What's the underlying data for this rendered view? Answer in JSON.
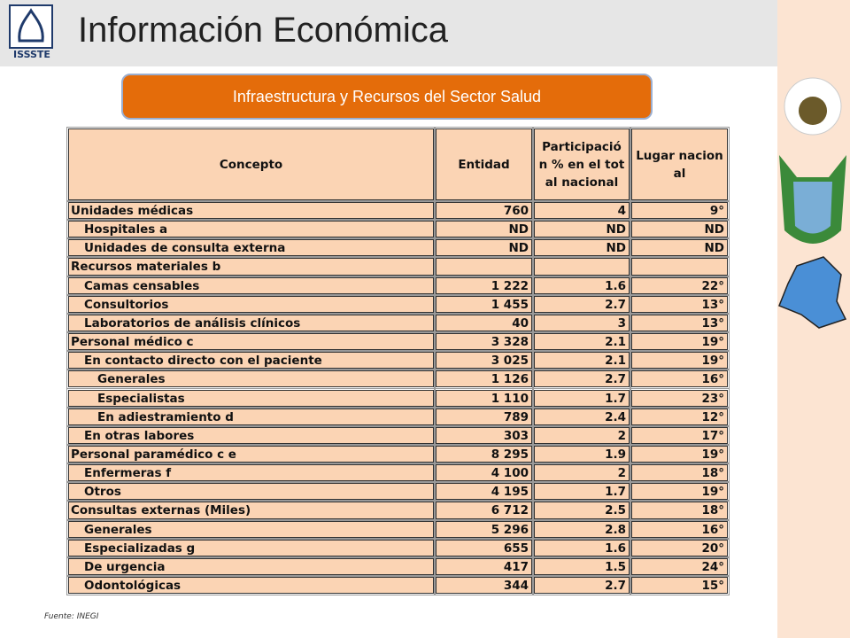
{
  "header": {
    "logo": "ISSSTE",
    "title": "Información Económica"
  },
  "banner": "Infraestructura y Recursos del Sector Salud",
  "table": {
    "columns": [
      "Concepto",
      "Entidad",
      "Participación % en el total nacional",
      "Lugar nacional"
    ],
    "rows": [
      {
        "cells": [
          "Unidades médicas",
          760,
          4,
          "9°"
        ],
        "rows": [
          {
            "cells": [
              "Hospitales a",
              "ND",
              "ND",
              "ND"
            ]
          },
          {
            "cells": [
              "Unidades de consulta externa",
              "ND",
              "ND",
              "ND"
            ]
          }
        ]
      },
      {
        "cells": [
          "Recursos materiales b",
          null,
          null,
          null
        ],
        "rows": [
          {
            "cells": [
              "Camas censables",
              "1 222",
              1.6,
              "22°"
            ]
          },
          {
            "cells": [
              "Consultorios",
              "1 455",
              2.7,
              "13°"
            ]
          },
          {
            "cells": [
              "Laboratorios de análisis clínicos",
              40,
              3,
              "13°"
            ]
          }
        ]
      },
      {
        "cells": [
          "Personal médico c",
          "3 328",
          2.1,
          "19°"
        ],
        "rows": [
          {
            "cells": [
              "En contacto directo con el paciente",
              "3 025",
              2.1,
              "19°"
            ],
            "rows": [
              {
                "cells": [
                  "Generales",
                  "1 126",
                  2.7,
                  "16°"
                ]
              },
              {
                "cells": [
                  "Especialistas",
                  "1 110",
                  1.7,
                  "23°"
                ]
              },
              {
                "cells": [
                  "En adiestramiento d",
                  789,
                  2.4,
                  "12°"
                ]
              }
            ]
          },
          {
            "cells": [
              "En otras labores",
              303,
              2,
              "17°"
            ]
          }
        ]
      },
      {
        "cells": [
          "Personal paramédico c e",
          "8 295",
          1.9,
          "19°"
        ],
        "rows": [
          {
            "cells": [
              "Enfermeras f",
              "4 100",
              2,
              "18°"
            ]
          },
          {
            "cells": [
              "Otros",
              "4 195",
              1.7,
              "19°"
            ]
          }
        ]
      },
      {
        "cells": [
          "Consultas externas (Miles)",
          "6 712",
          2.5,
          "18°"
        ],
        "rows": [
          {
            "cells": [
              "Generales",
              "5 296",
              2.8,
              "16°"
            ]
          },
          {
            "cells": [
              "Especializadas g",
              655,
              1.6,
              "20°"
            ]
          },
          {
            "cells": [
              "De urgencia",
              417,
              1.5,
              "24°"
            ]
          },
          {
            "cells": [
              "Odontológicas",
              344,
              2.7,
              "15°"
            ]
          }
        ]
      }
    ]
  },
  "footer": "Fuente: INEGI"
}
